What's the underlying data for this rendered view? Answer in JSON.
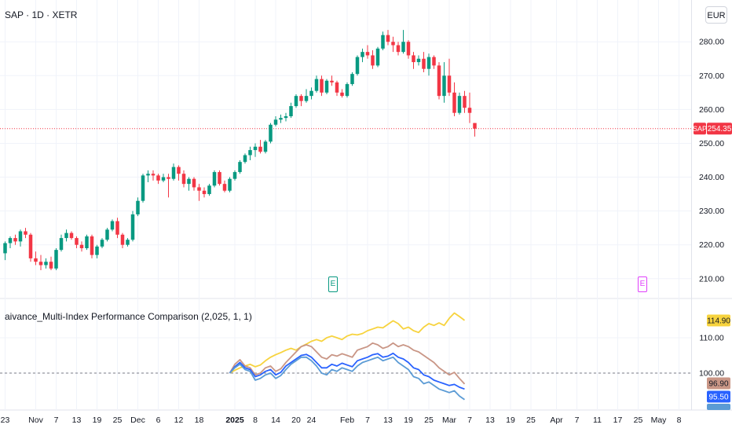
{
  "header": {
    "symbol_title": "SAP · 1D · XETR",
    "currency_label": "EUR"
  },
  "price_badge": {
    "symbol": "SAP",
    "value": "254.35"
  },
  "indicator": {
    "title": "aivance_Multi-Index Performance Comparison (2,025, 1, 1)",
    "badges": [
      "114.90",
      "96.90",
      "95.50"
    ]
  },
  "earnings_markers": [
    {
      "label": "E",
      "color": "#089981"
    },
    {
      "label": "E",
      "color": "#e040fb"
    }
  ],
  "colors": {
    "up": "#089981",
    "down": "#f23645",
    "grid": "#f0f3fa",
    "axis_text": "#131722",
    "gold": "#f7d33e",
    "rosybrown": "#c99686",
    "blue": "#2962ff",
    "steelblue": "#5b9bd5"
  },
  "chart_data": [
    {
      "type": "candlestick",
      "ylim": [
        206,
        284
      ],
      "yticks": [
        210,
        220,
        230,
        240,
        250,
        260,
        270,
        280
      ],
      "ytick_labels": [
        "210.00",
        "220.00",
        "230.00",
        "240.00",
        "250.00",
        "260.00",
        "270.00",
        "280.00"
      ],
      "last_price": 254.35,
      "x_ticks": [
        {
          "label": "23",
          "i": 0
        },
        {
          "label": "Nov",
          "i": 6
        },
        {
          "label": "7",
          "i": 10
        },
        {
          "label": "13",
          "i": 14
        },
        {
          "label": "19",
          "i": 18
        },
        {
          "label": "25",
          "i": 22
        },
        {
          "label": "Dec",
          "i": 26
        },
        {
          "label": "6",
          "i": 30
        },
        {
          "label": "12",
          "i": 34
        },
        {
          "label": "18",
          "i": 38
        },
        {
          "label": "2025",
          "i": 45
        },
        {
          "label": "8",
          "i": 49
        },
        {
          "label": "14",
          "i": 53
        },
        {
          "label": "20",
          "i": 57
        },
        {
          "label": "24",
          "i": 60
        },
        {
          "label": "Feb",
          "i": 67
        },
        {
          "label": "7",
          "i": 71
        },
        {
          "label": "13",
          "i": 75
        },
        {
          "label": "19",
          "i": 79
        },
        {
          "label": "25",
          "i": 83
        },
        {
          "label": "Mar",
          "i": 87
        },
        {
          "label": "7",
          "i": 91
        },
        {
          "label": "13",
          "i": 95
        },
        {
          "label": "19",
          "i": 99
        },
        {
          "label": "25",
          "i": 103
        },
        {
          "label": "Apr",
          "i": 108
        },
        {
          "label": "7",
          "i": 112
        },
        {
          "label": "11",
          "i": 116
        },
        {
          "label": "17",
          "i": 120
        },
        {
          "label": "25",
          "i": 124
        },
        {
          "label": "May",
          "i": 128
        },
        {
          "label": "8",
          "i": 132
        }
      ],
      "ohlc": [
        [
          217.5,
          221,
          215.5,
          220.5
        ],
        [
          220.5,
          222.5,
          219,
          222
        ],
        [
          222,
          223,
          220,
          221
        ],
        [
          221,
          224.5,
          219.5,
          224
        ],
        [
          224,
          225,
          222,
          223
        ],
        [
          223,
          223.5,
          215,
          216
        ],
        [
          216,
          218,
          214,
          215
        ],
        [
          215,
          217,
          212.5,
          214
        ],
        [
          214,
          216,
          213,
          215
        ],
        [
          215,
          216.5,
          212.5,
          213
        ],
        [
          213,
          219,
          212.5,
          218.5
        ],
        [
          218.5,
          223,
          218,
          222
        ],
        [
          222,
          224.5,
          221,
          223.5
        ],
        [
          223.5,
          224,
          221.5,
          222
        ],
        [
          222,
          222.5,
          219,
          220
        ],
        [
          220,
          221,
          218,
          219
        ],
        [
          219,
          223,
          218.5,
          222.5
        ],
        [
          222.5,
          223,
          216,
          217
        ],
        [
          217,
          220,
          216,
          219.5
        ],
        [
          219.5,
          222,
          219,
          221.5
        ],
        [
          221.5,
          225,
          221,
          224.5
        ],
        [
          224.5,
          227.5,
          224,
          227
        ],
        [
          227,
          228,
          222,
          223
        ],
        [
          223,
          223.5,
          219,
          220
        ],
        [
          220,
          222,
          219.5,
          221.5
        ],
        [
          221.5,
          230,
          221,
          229
        ],
        [
          229,
          234,
          228.5,
          233
        ],
        [
          233,
          241,
          232.5,
          240.5
        ],
        [
          240.5,
          242,
          238.5,
          241
        ],
        [
          241,
          242,
          239,
          240.5
        ],
        [
          240.5,
          241,
          238,
          239
        ],
        [
          239,
          241,
          238.5,
          240
        ],
        [
          240,
          241,
          234,
          239.5
        ],
        [
          239.5,
          244,
          239,
          243
        ],
        [
          243,
          243.5,
          239,
          241
        ],
        [
          241,
          242,
          237,
          238
        ],
        [
          238,
          240,
          236,
          239.5
        ],
        [
          239.5,
          240,
          236,
          237
        ],
        [
          237,
          238,
          233,
          236
        ],
        [
          236,
          237,
          234,
          235
        ],
        [
          235,
          238,
          234.5,
          237.5
        ],
        [
          237.5,
          242,
          237,
          241.5
        ],
        [
          241.5,
          242,
          237.5,
          238
        ],
        [
          238,
          239,
          235.5,
          236
        ],
        [
          236,
          240,
          235.5,
          239.5
        ],
        [
          239.5,
          242,
          239,
          241.5
        ],
        [
          241.5,
          245,
          241,
          244.5
        ],
        [
          244.5,
          247,
          244,
          246.5
        ],
        [
          246.5,
          249,
          245,
          248
        ],
        [
          248,
          250,
          246,
          249
        ],
        [
          249,
          251,
          247,
          247.5
        ],
        [
          247.5,
          251,
          247,
          250.5
        ],
        [
          250.5,
          256,
          250,
          255.5
        ],
        [
          255.5,
          258,
          255,
          257
        ],
        [
          257,
          258.5,
          256,
          257.5
        ],
        [
          257.5,
          259,
          256.5,
          258
        ],
        [
          258,
          262,
          257.5,
          261
        ],
        [
          261,
          264.5,
          260.5,
          264
        ],
        [
          264,
          264.5,
          261,
          262.5
        ],
        [
          262.5,
          266,
          262,
          264
        ],
        [
          264,
          266.5,
          263,
          265.5
        ],
        [
          265.5,
          270,
          265,
          269
        ],
        [
          269,
          270,
          264,
          265
        ],
        [
          265,
          269,
          264.5,
          268.5
        ],
        [
          268.5,
          270,
          267,
          268
        ],
        [
          268,
          268.5,
          264,
          265
        ],
        [
          265,
          266,
          263.5,
          264
        ],
        [
          264,
          268,
          263.5,
          267.5
        ],
        [
          267.5,
          271,
          267,
          270.5
        ],
        [
          270.5,
          276,
          270,
          275.5
        ],
        [
          275.5,
          278,
          274,
          277
        ],
        [
          277,
          279,
          275,
          276
        ],
        [
          276,
          277.5,
          272,
          273
        ],
        [
          273,
          278.5,
          272.5,
          278
        ],
        [
          278,
          283,
          277.5,
          282
        ],
        [
          282,
          283.5,
          279,
          280
        ],
        [
          280,
          281.5,
          277,
          279
        ],
        [
          279,
          280,
          276,
          277
        ],
        [
          277,
          283.5,
          276.5,
          280
        ],
        [
          280,
          280.5,
          275,
          276
        ],
        [
          276,
          277,
          272,
          274
        ],
        [
          274,
          276,
          273,
          275
        ],
        [
          275,
          277,
          271,
          272
        ],
        [
          272,
          276.5,
          270,
          275.5
        ],
        [
          275.5,
          276,
          272,
          273
        ],
        [
          273,
          274,
          263,
          264
        ],
        [
          264,
          274,
          262,
          270
        ],
        [
          270,
          275,
          264,
          265
        ],
        [
          265,
          268,
          258,
          259
        ],
        [
          259,
          265,
          258.5,
          264
        ],
        [
          264,
          265.5,
          259,
          260.5
        ],
        [
          260.5,
          265,
          256,
          259
        ],
        [
          256,
          256,
          252,
          254.35
        ]
      ]
    },
    {
      "type": "line",
      "ylim": [
        90,
        118
      ],
      "yticks": [
        100,
        110
      ],
      "ytick_labels": [
        "100.00",
        "110.00"
      ],
      "reference_line": 100,
      "x_start_index": 44,
      "series": [
        {
          "color": "#f7d33e",
          "values": [
            100,
            100.8,
            101.5,
            102,
            102.5,
            101.8,
            102.3,
            103.5,
            104.5,
            105.2,
            105.8,
            106.5,
            107,
            106.5,
            107.5,
            108.2,
            109,
            109.5,
            109,
            110,
            110.5,
            110,
            109.5,
            110.5,
            111,
            110.8,
            111.2,
            112,
            112.5,
            113,
            112.8,
            113.8,
            114.8,
            114,
            112.5,
            113,
            112,
            111.5,
            113,
            114,
            113.5,
            114.2,
            113.5,
            115.5,
            117,
            116,
            114.9
          ]
        },
        {
          "color": "#c99686",
          "values": [
            100,
            102.5,
            103.8,
            102,
            101.5,
            99.5,
            100,
            101.5,
            102,
            100.5,
            101.2,
            103,
            104.5,
            106,
            107.5,
            108,
            107.5,
            106,
            104.5,
            104,
            105.2,
            104.8,
            105.5,
            105,
            104.5,
            106.5,
            107,
            107.5,
            108.5,
            108,
            107,
            107.5,
            108.5,
            107.5,
            108,
            107.5,
            106.5,
            106,
            105,
            104,
            103,
            101.5,
            100.5,
            99.5,
            100.2,
            98.5,
            96.9
          ]
        },
        {
          "color": "#2962ff",
          "values": [
            100,
            101.8,
            103,
            101.5,
            101,
            99,
            99.5,
            100.5,
            101,
            99.5,
            100.2,
            102,
            103,
            104,
            105,
            105.3,
            104.5,
            103,
            101.5,
            101.5,
            102.5,
            102,
            102.8,
            102.3,
            101.8,
            103.5,
            104,
            104.5,
            105.2,
            105.5,
            104.5,
            104.8,
            105.6,
            104.5,
            104,
            103,
            101.5,
            101,
            99.5,
            99,
            98,
            97.5,
            97,
            96.5,
            96.8,
            96,
            95.5
          ]
        },
        {
          "color": "#5b9bd5",
          "values": [
            100,
            101.5,
            102.5,
            101,
            100.5,
            98,
            98.5,
            99.5,
            100,
            98.5,
            99.3,
            101,
            102.5,
            103.5,
            104.5,
            104.5,
            103.5,
            102,
            100,
            99.5,
            101,
            100.5,
            101.5,
            101,
            100.5,
            102,
            103,
            103.5,
            104,
            104.5,
            103.5,
            104,
            104.5,
            103,
            102,
            101,
            99,
            98.5,
            97,
            97.5,
            96.5,
            95.5,
            95,
            94.5,
            95,
            93.5,
            92.5
          ]
        }
      ]
    }
  ]
}
